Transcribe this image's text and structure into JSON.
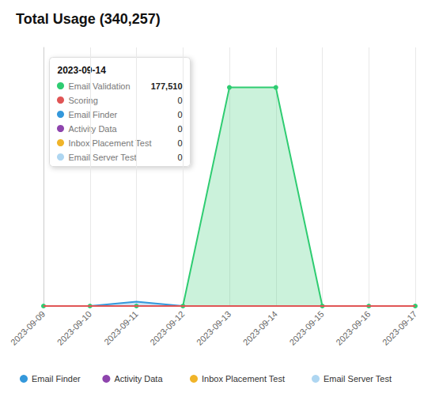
{
  "chart_data": {
    "type": "line",
    "title": "Total Usage (340,257)",
    "categories": [
      "2023-09-09",
      "2023-09-10",
      "2023-09-11",
      "2023-09-12",
      "2023-09-13",
      "2023-09-14",
      "2023-09-15",
      "2023-09-16",
      "2023-09-17"
    ],
    "series": [
      {
        "name": "Email Validation",
        "type": "area",
        "color": "#2ecc71",
        "marker": "circle",
        "values": [
          0,
          0,
          0,
          0,
          177510,
          177510,
          0,
          0,
          0
        ]
      },
      {
        "name": "Email Finder",
        "type": "area",
        "color": "#3498db",
        "marker": "none",
        "values": [
          0,
          0,
          3500,
          0,
          0,
          0,
          0,
          0,
          0
        ]
      },
      {
        "name": "Scoring",
        "type": "line",
        "color": "#e05555",
        "marker": "none",
        "values": [
          0,
          0,
          0,
          0,
          0,
          0,
          0,
          0,
          0
        ]
      }
    ],
    "ylim": [
      0,
      210000
    ],
    "grid": true,
    "tick_labels": "x",
    "annotations": [
      {
        "text": "2023-09-14",
        "rows": [
          {
            "name": "Email Validation",
            "color": "#2ecc71",
            "value": 177510,
            "label": "177,510"
          },
          {
            "name": "Scoring",
            "color": "#e05555",
            "value": 0
          },
          {
            "name": "Email Finder",
            "color": "#3498db",
            "value": 0
          },
          {
            "name": "Activity Data",
            "color": "#8e44ad",
            "value": 0
          },
          {
            "name": "Inbox Placement Test",
            "color": "#f0b429",
            "value": 0
          },
          {
            "name": "Email Server Test",
            "color": "#aed6f1",
            "value": 0
          }
        ]
      }
    ],
    "legend": "bottom",
    "legend_entries": [
      {
        "name": "Email Finder",
        "color": "#3498db"
      },
      {
        "name": "Activity Data",
        "color": "#8e44ad"
      },
      {
        "name": "Inbox Placement Test",
        "color": "#f0b429"
      },
      {
        "name": "Email Server Test",
        "color": "#aed6f1"
      }
    ]
  }
}
